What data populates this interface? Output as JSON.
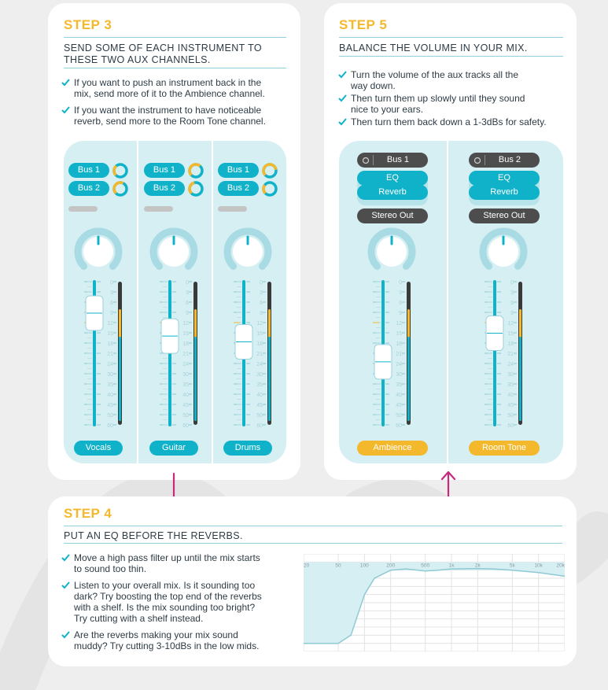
{
  "colors": {
    "teal": "#0fb2c9",
    "orange": "#f4b82c",
    "magenta": "#c72a7c",
    "dark": "#4d4d4d",
    "panel": "#d6eff3"
  },
  "step3": {
    "title": "STEP 3",
    "subtitle_line1": "SEND SOME OF EACH INSTRUMENT TO",
    "subtitle_line2": "THESE TWO AUX CHANNELS.",
    "bullets": [
      {
        "line1": "If you want to push an instrument back in the",
        "line2": "mix, send more of it to the Ambience channel."
      },
      {
        "line1": "If you want the instrument to have noticeable",
        "line2": "reverb, send more to the Room Tone channel."
      }
    ],
    "channels": [
      {
        "name": "Vocals",
        "bus1": "Bus 1",
        "bus2": "Bus 2",
        "bus1_level": 0.35,
        "bus2_level": 0.6,
        "fader_position": 0.22
      },
      {
        "name": "Guitar",
        "bus1": "Bus 1",
        "bus2": "Bus 2",
        "bus1_level": 0.65,
        "bus2_level": 0.45,
        "fader_position": 0.38
      },
      {
        "name": "Drums",
        "bus1": "Bus 1",
        "bus2": "Bus 2",
        "bus1_level": 0.8,
        "bus2_level": 0.3,
        "fader_position": 0.42
      }
    ]
  },
  "step5": {
    "title": "STEP 5",
    "subtitle": "BALANCE THE VOLUME IN YOUR MIX.",
    "bullets": [
      {
        "line1": "Turn the volume of the aux tracks all the",
        "line2": "way down."
      },
      {
        "line1": "Then turn them up slowly until they sound",
        "line2": "nice to your ears."
      },
      {
        "line1": "Then turn them back down a 1-3dBs for safety.",
        "line2": ""
      }
    ],
    "channels": [
      {
        "name": "Ambience",
        "input": "Bus 1",
        "inserts": [
          "EQ",
          "Reverb"
        ],
        "output": "Stereo Out",
        "fader_position": 0.56
      },
      {
        "name": "Room Tone",
        "input": "Bus 2",
        "inserts": [
          "EQ",
          "Reverb"
        ],
        "output": "Stereo Out",
        "fader_position": 0.36
      }
    ]
  },
  "fader_scale": [
    "0",
    "3",
    "6",
    "9",
    "12",
    "15",
    "18",
    "21",
    "24",
    "30",
    "35",
    "40",
    "45",
    "50",
    "60"
  ],
  "step4": {
    "title": "STEP 4",
    "subtitle": "PUT AN EQ BEFORE THE REVERBS.",
    "bullets": [
      {
        "lines": [
          "Move a high pass filter up until the mix starts",
          "to sound too thin."
        ]
      },
      {
        "lines": [
          "Listen to your overall mix. Is it sounding too",
          "dark? Try boosting the top end of the reverbs",
          "with a shelf. Is the mix sounding too bright?",
          "Try cutting with a shelf instead."
        ]
      },
      {
        "lines": [
          "Are the reverbs making your mix sound",
          "muddy? Try cutting 3-10dBs in the low mids."
        ]
      }
    ]
  },
  "chart_data": {
    "type": "line",
    "title": "",
    "xlabel": "",
    "ylabel": "",
    "x_scale": "log",
    "x_ticks": [
      "20",
      "50",
      "100",
      "200",
      "500",
      "1k",
      "2k",
      "5k",
      "10k",
      "20k"
    ],
    "x": [
      20,
      50,
      70,
      100,
      130,
      200,
      300,
      500,
      700,
      1000,
      2000,
      3000,
      5000,
      10000,
      20000
    ],
    "y": [
      -18,
      -18,
      -16,
      -6,
      -2,
      0,
      0.3,
      -0.2,
      0,
      0.3,
      0.4,
      0.3,
      0,
      -0.6,
      -1.5
    ],
    "ylim": [
      -20,
      4
    ],
    "grid": true
  }
}
